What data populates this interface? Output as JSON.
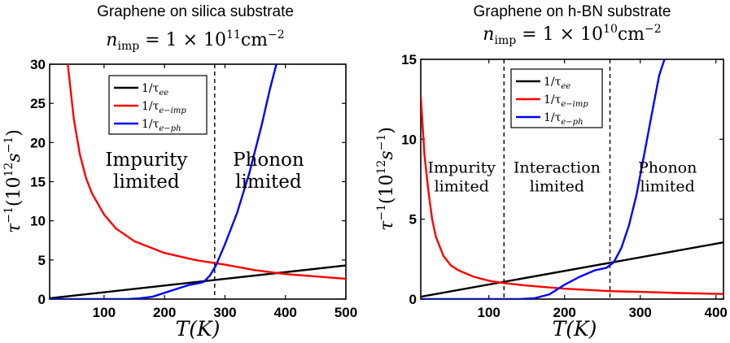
{
  "chart_data": [
    {
      "type": "line",
      "title": "Graphene on silica substrate",
      "subtitle": {
        "prefix": "n",
        "sub": "imp",
        "mid": " = 1 × 10",
        "sup": "11",
        "unit": "cm",
        "unit_sup": "−2"
      },
      "xlabel": "T(K)",
      "ylabel": {
        "prefix": "τ",
        "sup1": "−1",
        "mid": "(10",
        "sup2": "12",
        "unit": "s",
        "sup3": "−1",
        "suffix": ")"
      },
      "xlim": [
        10,
        500
      ],
      "ylim": [
        0,
        30
      ],
      "xticks": [
        100,
        200,
        300,
        400,
        500
      ],
      "yticks": [
        0,
        5,
        10,
        15,
        20,
        25,
        30
      ],
      "grid": false,
      "legend_position": "top-left",
      "vlines": [
        283
      ],
      "regions": [
        {
          "lines": [
            "Impurity",
            "limited"
          ],
          "x": 170,
          "y": 17
        },
        {
          "lines": [
            "Phonon",
            "limited"
          ],
          "x": 372,
          "y": 17
        }
      ],
      "series": [
        {
          "name": "1/τee",
          "color": "#000000",
          "x": [
            10,
            500
          ],
          "y": [
            0.1,
            4.3
          ]
        },
        {
          "name": "1/τe−imp",
          "color": "#ff0000",
          "x": [
            40,
            50,
            60,
            70,
            80,
            100,
            120,
            150,
            200,
            250,
            283,
            300,
            350,
            400,
            450,
            500
          ],
          "y": [
            30,
            23,
            18.5,
            15.5,
            13.5,
            10.8,
            9.0,
            7.4,
            5.9,
            5.0,
            4.6,
            4.4,
            3.7,
            3.2,
            2.9,
            2.6
          ]
        },
        {
          "name": "1/τe−ph",
          "color": "#0000ff",
          "x": [
            10,
            140,
            160,
            180,
            200,
            220,
            240,
            255,
            265,
            275,
            285,
            300,
            320,
            340,
            360,
            375,
            385
          ],
          "y": [
            0,
            0,
            0.1,
            0.3,
            0.8,
            1.3,
            1.8,
            2.0,
            2.2,
            3.0,
            4.3,
            7.0,
            11.0,
            16.0,
            22.0,
            27.0,
            30.0
          ]
        }
      ]
    },
    {
      "type": "line",
      "title": "Graphene on h-BN substrate",
      "subtitle": {
        "prefix": "n",
        "sub": "imp",
        "mid": " = 1 × 10",
        "sup": "10",
        "unit": "cm",
        "unit_sup": "−2"
      },
      "xlabel": "T(K)",
      "ylabel": {
        "prefix": "τ",
        "sup1": "−1",
        "mid": "(10",
        "sup2": "12",
        "unit": "s",
        "sup3": "−1",
        "suffix": ")"
      },
      "xlim": [
        10,
        410
      ],
      "ylim": [
        0,
        15
      ],
      "xticks": [
        100,
        200,
        300,
        400
      ],
      "yticks": [
        0,
        5,
        10,
        15
      ],
      "grid": false,
      "legend_position": "top-center",
      "vlines": [
        120,
        260
      ],
      "regions": [
        {
          "lines": [
            "Impurity",
            "limited"
          ],
          "x": 64,
          "y": 7.9
        },
        {
          "lines": [
            "Interaction",
            "limited"
          ],
          "x": 190,
          "y": 7.9
        },
        {
          "lines": [
            "Phonon",
            "limited"
          ],
          "x": 336,
          "y": 7.9
        }
      ],
      "series": [
        {
          "name": "1/τee",
          "color": "#000000",
          "x": [
            10,
            410
          ],
          "y": [
            0.15,
            3.55
          ]
        },
        {
          "name": "1/τe−imp",
          "color": "#ff0000",
          "x": [
            10,
            15,
            20,
            25,
            30,
            40,
            50,
            60,
            80,
            100,
            120,
            150,
            200,
            260,
            300,
            350,
            410
          ],
          "y": [
            12.7,
            9.0,
            6.8,
            5.0,
            3.9,
            2.7,
            2.1,
            1.8,
            1.4,
            1.15,
            1.0,
            0.85,
            0.65,
            0.5,
            0.45,
            0.38,
            0.32
          ]
        },
        {
          "name": "1/τe−ph",
          "color": "#0000ff",
          "x": [
            10,
            140,
            160,
            180,
            200,
            220,
            240,
            255,
            265,
            275,
            285,
            295,
            305,
            315,
            325,
            332
          ],
          "y": [
            0,
            0,
            0.05,
            0.3,
            0.9,
            1.4,
            1.8,
            1.95,
            2.3,
            3.2,
            4.6,
            6.5,
            9.0,
            11.5,
            14.0,
            15.0
          ]
        }
      ]
    }
  ]
}
